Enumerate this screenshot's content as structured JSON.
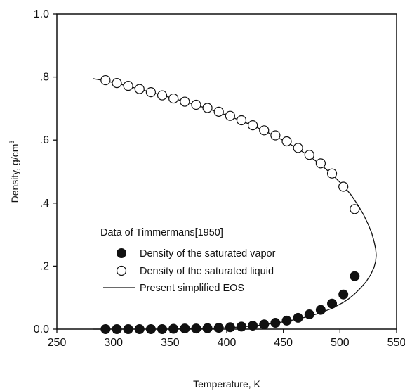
{
  "chart_data": {
    "type": "scatter",
    "title": "",
    "xlabel": "Temperature, K",
    "ylabel": "Density, g/cm",
    "ylabel_superscript": "3",
    "xlim": [
      250,
      550
    ],
    "ylim": [
      0,
      1.0
    ],
    "xticks": [
      250,
      300,
      350,
      400,
      450,
      500,
      550
    ],
    "xtick_labels": [
      "250",
      "300",
      "350",
      "400",
      "450",
      "500",
      "550"
    ],
    "yticks": [
      0,
      0.2,
      0.4,
      0.6,
      0.8,
      1.0
    ],
    "ytick_labels": [
      "0.0",
      ".2",
      ".4",
      ".6",
      ".8",
      "1.0"
    ],
    "grid": false,
    "legend": {
      "title": "Data of Timmermans[1950]",
      "placement": "lower-left",
      "entries": [
        "Density of the saturated vapor",
        "Density of the saturated liquid",
        "Present simplified EOS"
      ]
    },
    "series": [
      {
        "name": "Density of the saturated vapor",
        "kind": "scatter",
        "marker": "filled-circle",
        "color": "#111111",
        "x": [
          293,
          303,
          313,
          323,
          333,
          343,
          353,
          363,
          373,
          383,
          393,
          403,
          413,
          423,
          433,
          443,
          453,
          463,
          473,
          483,
          493,
          503,
          513
        ],
        "y": [
          0.0,
          0.0,
          0.0,
          0.0,
          0.0,
          0.0,
          0.001,
          0.002,
          0.002,
          0.003,
          0.004,
          0.006,
          0.008,
          0.011,
          0.015,
          0.02,
          0.027,
          0.036,
          0.047,
          0.061,
          0.081,
          0.11,
          0.168
        ]
      },
      {
        "name": "Density of the saturated liquid",
        "kind": "scatter",
        "marker": "open-circle",
        "color": "#111111",
        "x": [
          293,
          303,
          313,
          323,
          333,
          343,
          353,
          363,
          373,
          383,
          393,
          403,
          413,
          423,
          433,
          443,
          453,
          463,
          473,
          483,
          493,
          503,
          513
        ],
        "y": [
          0.79,
          0.781,
          0.772,
          0.762,
          0.752,
          0.742,
          0.732,
          0.722,
          0.712,
          0.702,
          0.69,
          0.677,
          0.663,
          0.647,
          0.631,
          0.615,
          0.596,
          0.575,
          0.553,
          0.526,
          0.494,
          0.452,
          0.381
        ]
      },
      {
        "name": "Present simplified EOS",
        "kind": "line",
        "color": "#111111",
        "points": [
          [
            282,
            0.795
          ],
          [
            293,
            0.788
          ],
          [
            303,
            0.78
          ],
          [
            313,
            0.771
          ],
          [
            323,
            0.762
          ],
          [
            333,
            0.752
          ],
          [
            343,
            0.742
          ],
          [
            353,
            0.732
          ],
          [
            363,
            0.722
          ],
          [
            373,
            0.711
          ],
          [
            383,
            0.7
          ],
          [
            393,
            0.688
          ],
          [
            403,
            0.675
          ],
          [
            413,
            0.661
          ],
          [
            423,
            0.646
          ],
          [
            433,
            0.63
          ],
          [
            443,
            0.612
          ],
          [
            453,
            0.593
          ],
          [
            463,
            0.572
          ],
          [
            473,
            0.549
          ],
          [
            483,
            0.522
          ],
          [
            493,
            0.491
          ],
          [
            503,
            0.455
          ],
          [
            510,
            0.425
          ],
          [
            516,
            0.393
          ],
          [
            521,
            0.362
          ],
          [
            525,
            0.332
          ],
          [
            528,
            0.305
          ],
          [
            530,
            0.28
          ],
          [
            531.5,
            0.255
          ],
          [
            532,
            0.235
          ],
          [
            531.5,
            0.215
          ],
          [
            530,
            0.195
          ],
          [
            527,
            0.172
          ],
          [
            523,
            0.15
          ],
          [
            518,
            0.13
          ],
          [
            513,
            0.112
          ],
          [
            508,
            0.097
          ],
          [
            503,
            0.085
          ],
          [
            493,
            0.066
          ],
          [
            483,
            0.052
          ],
          [
            473,
            0.041
          ],
          [
            463,
            0.032
          ],
          [
            453,
            0.025
          ],
          [
            443,
            0.019
          ],
          [
            433,
            0.014
          ],
          [
            423,
            0.01
          ],
          [
            413,
            0.007
          ],
          [
            403,
            0.005
          ],
          [
            393,
            0.003
          ],
          [
            383,
            0.002
          ],
          [
            373,
            0.001
          ],
          [
            363,
            0.001
          ],
          [
            353,
            0.0
          ],
          [
            343,
            0.0
          ],
          [
            333,
            0.0
          ],
          [
            323,
            0.0
          ],
          [
            313,
            0.0
          ],
          [
            303,
            0.0
          ],
          [
            293,
            0.0
          ],
          [
            282,
            0.0
          ]
        ]
      }
    ]
  }
}
